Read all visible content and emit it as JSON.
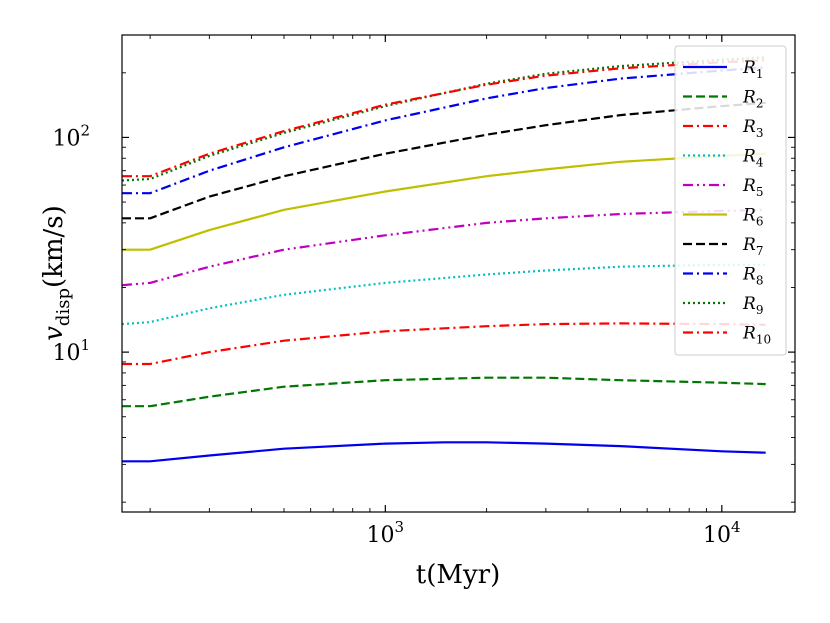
{
  "chart_data": {
    "type": "line",
    "title": "",
    "xlabel": "t(Myr)",
    "ylabel": "v_disp(km/s)",
    "ylabel_main": "v",
    "ylabel_sub": "disp",
    "ylabel_units": "(km/s)",
    "xscale": "log",
    "yscale": "log",
    "xlim": [
      165,
      16500
    ],
    "ylim": [
      1.8,
      300
    ],
    "x_ticks": [
      {
        "value": 1000,
        "base": "10",
        "exp": "3"
      },
      {
        "value": 10000,
        "base": "10",
        "exp": "4"
      }
    ],
    "y_ticks": [
      {
        "value": 10,
        "base": "10",
        "exp": "1"
      },
      {
        "value": 100,
        "base": "10",
        "exp": "2"
      }
    ],
    "legend_position": "upper-right",
    "series": [
      {
        "name": "R",
        "sub": "1",
        "color": "#0000ee",
        "dash": "solid",
        "x": [
          165,
          200,
          300,
          500,
          1000,
          1500,
          2000,
          3000,
          5000,
          10000,
          13500
        ],
        "y": [
          3.1,
          3.1,
          3.3,
          3.55,
          3.75,
          3.8,
          3.8,
          3.75,
          3.65,
          3.45,
          3.4
        ]
      },
      {
        "name": "R",
        "sub": "2",
        "color": "#007700",
        "dash": "dashed",
        "x": [
          165,
          200,
          300,
          500,
          1000,
          2000,
          3000,
          5000,
          10000,
          13500
        ],
        "y": [
          5.6,
          5.6,
          6.2,
          6.9,
          7.4,
          7.6,
          7.6,
          7.4,
          7.2,
          7.1
        ]
      },
      {
        "name": "R",
        "sub": "3",
        "color": "#ff0000",
        "dash": "dashdot",
        "x": [
          165,
          200,
          300,
          500,
          1000,
          2000,
          3000,
          5000,
          10000,
          13500
        ],
        "y": [
          8.8,
          8.8,
          10.0,
          11.3,
          12.5,
          13.2,
          13.5,
          13.6,
          13.5,
          13.4
        ]
      },
      {
        "name": "R",
        "sub": "4",
        "color": "#00c0c0",
        "dash": "dotted",
        "x": [
          165,
          200,
          300,
          500,
          1000,
          2000,
          3000,
          5000,
          10000,
          13500
        ],
        "y": [
          13.5,
          13.8,
          16.0,
          18.5,
          21.0,
          23.0,
          24.0,
          25.0,
          25.5,
          25.5
        ]
      },
      {
        "name": "R",
        "sub": "5",
        "color": "#c000c0",
        "dash": "dashdotdot",
        "x": [
          165,
          200,
          300,
          500,
          1000,
          2000,
          3000,
          5000,
          10000,
          13500
        ],
        "y": [
          20.5,
          21.0,
          25.0,
          30.0,
          35.0,
          40.0,
          42.0,
          44.0,
          45.5,
          46.0
        ]
      },
      {
        "name": "R",
        "sub": "6",
        "color": "#bfbf00",
        "dash": "solid",
        "x": [
          165,
          200,
          300,
          500,
          1000,
          2000,
          3000,
          5000,
          10000,
          13500
        ],
        "y": [
          30.0,
          30.0,
          37.0,
          46.0,
          56.0,
          66.0,
          71.0,
          77.0,
          82.0,
          84.0
        ]
      },
      {
        "name": "R",
        "sub": "7",
        "color": "#000000",
        "dash": "dashed",
        "x": [
          165,
          200,
          300,
          500,
          1000,
          2000,
          3000,
          5000,
          10000,
          13500
        ],
        "y": [
          42.0,
          42.0,
          53.0,
          66.0,
          84.0,
          103.0,
          114.0,
          127.0,
          140.0,
          145.0
        ]
      },
      {
        "name": "R",
        "sub": "8",
        "color": "#0000ee",
        "dash": "dashdot",
        "x": [
          165,
          200,
          300,
          500,
          1000,
          2000,
          3000,
          5000,
          10000,
          13500
        ],
        "y": [
          55.0,
          55.0,
          70.0,
          90.0,
          120.0,
          152.0,
          170.0,
          188.0,
          205.0,
          212.0
        ]
      },
      {
        "name": "R",
        "sub": "9",
        "color": "#007700",
        "dash": "dotted",
        "x": [
          165,
          200,
          300,
          500,
          1000,
          2000,
          3000,
          5000,
          10000,
          13500
        ],
        "y": [
          63.0,
          64.0,
          82.0,
          105.0,
          140.0,
          178.0,
          198.0,
          215.0,
          230.0,
          236.0
        ]
      },
      {
        "name": "R",
        "sub": "10",
        "color": "#ff0000",
        "dash": "dashdot",
        "x": [
          165,
          200,
          300,
          500,
          1000,
          2000,
          3000,
          5000,
          10000,
          13500
        ],
        "y": [
          66.0,
          66.0,
          84.0,
          107.0,
          142.0,
          176.0,
          194.0,
          210.0,
          224.0,
          229.0
        ]
      }
    ]
  }
}
